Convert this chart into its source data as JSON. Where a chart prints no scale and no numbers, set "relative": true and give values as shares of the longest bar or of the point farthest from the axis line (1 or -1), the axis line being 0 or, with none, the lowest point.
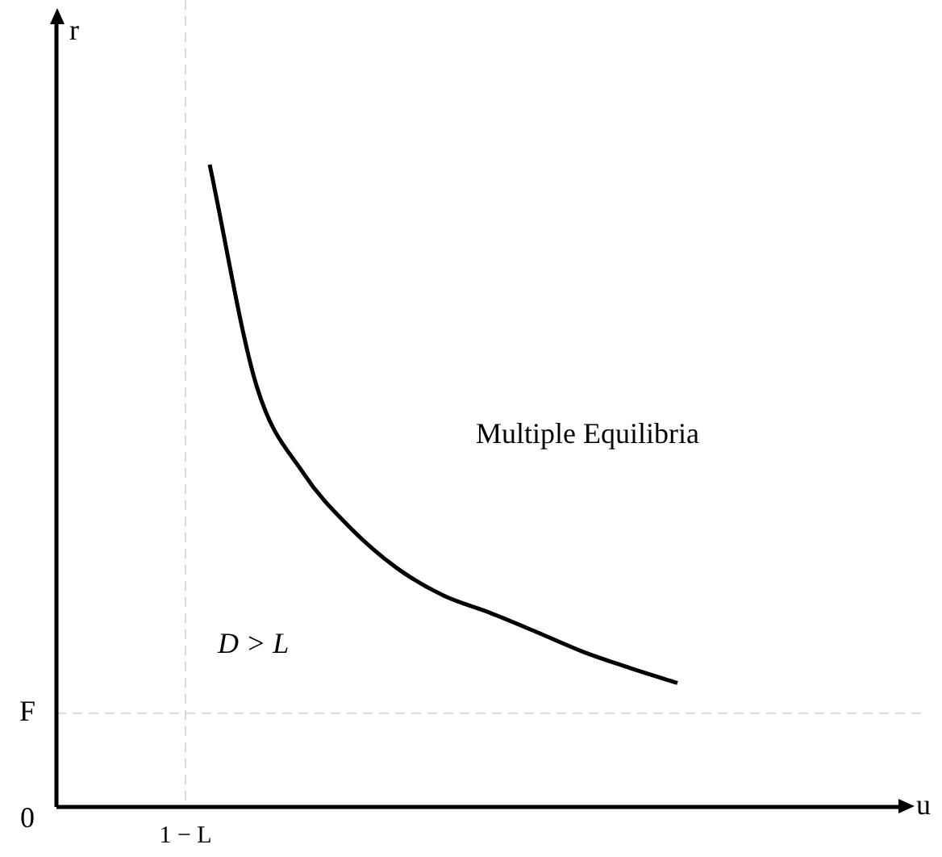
{
  "chart_data": {
    "type": "line",
    "relative": true,
    "categories": [
      null,
      null,
      null,
      null,
      null,
      null,
      null,
      null,
      null,
      null,
      null
    ],
    "series": [
      {
        "color": "#000000",
        "values": [
          1.0,
          0.656,
          0.52,
          0.435,
          0.372,
          0.329,
          0.302,
          0.272,
          0.241,
          0.216,
          0.193
        ]
      }
    ],
    "ref_lines": [
      {
        "axis": "y",
        "value": 0.146,
        "label": "F",
        "color": "#d9d9d9",
        "line_style": "dashed"
      }
    ],
    "annotations": [
      "Multiple Equilibria",
      "D > L",
      "1 − L",
      "0",
      "r",
      "u"
    ],
    "marker": "none",
    "line_style": "solid",
    "legend": false
  }
}
